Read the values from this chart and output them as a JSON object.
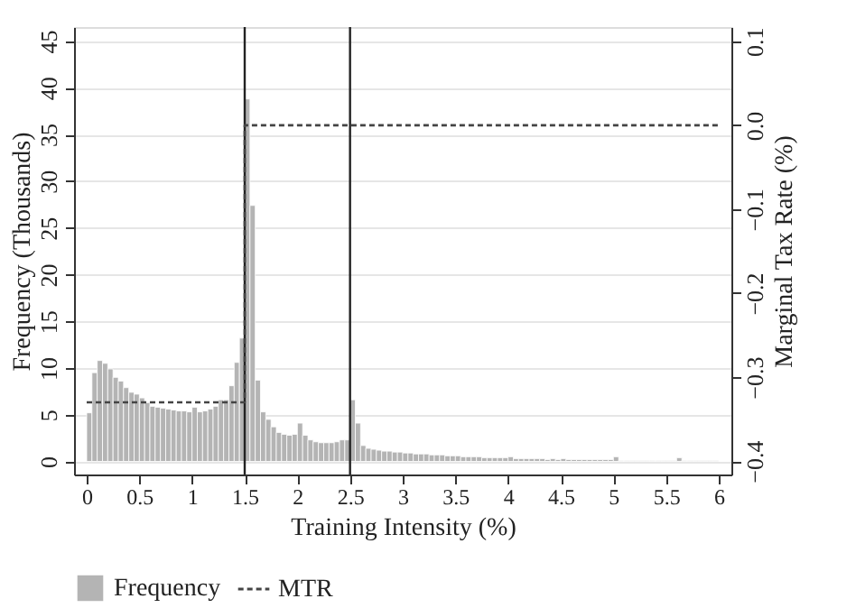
{
  "chart_data": {
    "type": "histogram",
    "xlabel": "Training Intensity (%)",
    "ylabel": "Frequency (Thousands)",
    "y2label": "Marginal Tax Rate (%)",
    "bins": [
      0,
      0.05,
      0.1,
      0.15,
      0.2,
      0.25,
      0.3,
      0.35,
      0.4,
      0.45,
      0.5,
      0.55,
      0.6,
      0.65,
      0.7,
      0.75,
      0.8,
      0.85,
      0.9,
      0.95,
      1,
      1.05,
      1.1,
      1.15,
      1.2,
      1.25,
      1.3,
      1.35,
      1.4,
      1.45,
      1.5,
      1.55,
      1.6,
      1.65,
      1.7,
      1.75,
      1.8,
      1.85,
      1.9,
      1.95,
      2,
      2.05,
      2.1,
      2.15,
      2.2,
      2.25,
      2.3,
      2.35,
      2.4,
      2.45,
      2.5,
      2.55,
      2.6,
      2.65,
      2.7,
      2.75,
      2.8,
      2.85,
      2.9,
      2.95,
      3,
      3.05,
      3.1,
      3.15,
      3.2,
      3.25,
      3.3,
      3.35,
      3.4,
      3.45,
      3.5,
      3.55,
      3.6,
      3.65,
      3.7,
      3.75,
      3.8,
      3.85,
      3.9,
      3.95,
      4,
      4.05,
      4.1,
      4.15,
      4.2,
      4.25,
      4.3,
      4.35,
      4.4,
      4.45,
      4.5,
      4.55,
      4.6,
      4.65,
      4.7,
      4.75,
      4.8,
      4.85,
      4.9,
      4.95,
      5,
      5.05,
      5.1,
      5.15,
      5.2,
      5.25,
      5.3,
      5.35,
      5.4,
      5.45,
      5.5,
      5.55,
      5.6,
      5.65,
      5.7,
      5.75,
      5.8,
      5.85,
      5.9,
      5.95,
      6
    ],
    "series": [
      {
        "name": "Frequency",
        "color": "#b4b4b4",
        "values": [
          5.2,
          9.5,
          10.8,
          10.5,
          9.9,
          9.0,
          8.6,
          7.9,
          7.4,
          7.2,
          6.8,
          6.3,
          5.9,
          5.8,
          5.7,
          5.6,
          5.5,
          5.4,
          5.4,
          5.3,
          5.8,
          5.3,
          5.4,
          5.6,
          5.9,
          6.6,
          6.6,
          8.1,
          10.6,
          13.2,
          38.8,
          27.4,
          8.7,
          5.3,
          4.5,
          3.7,
          3.1,
          2.9,
          2.8,
          2.9,
          4.1,
          2.8,
          2.3,
          2.1,
          2.0,
          2.0,
          2.0,
          2.1,
          2.3,
          2.3,
          6.6,
          4.1,
          1.7,
          1.4,
          1.3,
          1.2,
          1.1,
          1.1,
          1.0,
          1.0,
          0.9,
          0.9,
          0.8,
          0.8,
          0.8,
          0.7,
          0.7,
          0.7,
          0.6,
          0.6,
          0.6,
          0.5,
          0.5,
          0.5,
          0.5,
          0.4,
          0.4,
          0.4,
          0.4,
          0.4,
          0.5,
          0.3,
          0.3,
          0.3,
          0.3,
          0.3,
          0.3,
          0.2,
          0.3,
          0.2,
          0.3,
          0.2,
          0.2,
          0.2,
          0.2,
          0.2,
          0.2,
          0.2,
          0.2,
          0.2,
          0.5,
          0.1,
          0.1,
          0.1,
          0.1,
          0.1,
          0.1,
          0.1,
          0.1,
          0.1,
          0.1,
          0.1,
          0.4,
          0.1,
          0.1,
          0.1,
          0.1,
          0.1,
          0.1,
          0.1
        ]
      },
      {
        "name": "MTR",
        "type": "line",
        "axis": "y2",
        "color": "#444444",
        "line_style": "dashed",
        "marker": "none",
        "x": [
          0,
          1.5,
          1.5,
          6
        ],
        "values": [
          -0.33,
          -0.33,
          0.0,
          0.0
        ]
      }
    ],
    "xlim": [
      -0.12,
      6.12
    ],
    "xticks": [
      0,
      0.5,
      1,
      1.5,
      2,
      2.5,
      3,
      3.5,
      4,
      4.5,
      5,
      5.5,
      6
    ],
    "ylim": [
      -1.4,
      46.5
    ],
    "yticks": [
      0,
      5,
      10,
      15,
      20,
      25,
      30,
      35,
      40,
      45
    ],
    "y2lim": [
      -0.416,
      0.117
    ],
    "y2ticks": [
      -0.4,
      -0.3,
      -0.2,
      -0.1,
      {
        "value": 0,
        "label": "0.0"
      },
      0.1
    ],
    "ref_lines": [
      {
        "axis": "x",
        "value": 1.5,
        "color": "#222222",
        "line_style": "solid"
      },
      {
        "axis": "x",
        "value": 2.5,
        "color": "#222222",
        "line_style": "solid"
      }
    ],
    "grid": "y",
    "legend": "bottom"
  }
}
